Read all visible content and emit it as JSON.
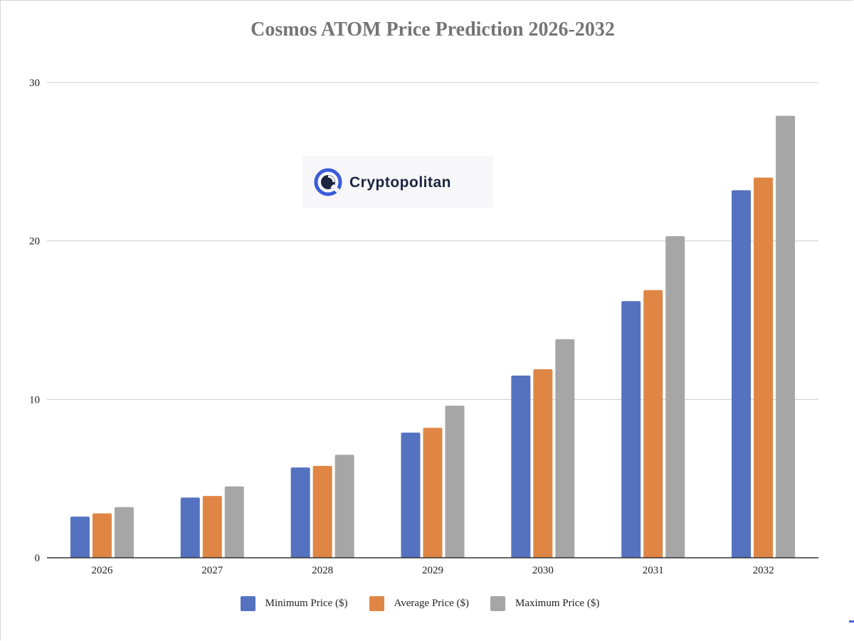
{
  "chart_data": {
    "type": "bar",
    "title": "Cosmos ATOM Price Prediction 2026-2032",
    "xlabel": "",
    "ylabel": "",
    "categories": [
      "2026",
      "2027",
      "2028",
      "2029",
      "2030",
      "2031",
      "2032"
    ],
    "series": [
      {
        "name": "Minimum Price ($)",
        "color": "#5472c0",
        "values": [
          2.6,
          3.8,
          5.7,
          7.9,
          11.5,
          16.2,
          23.2
        ]
      },
      {
        "name": "Average Price ($)",
        "color": "#e08644",
        "values": [
          2.8,
          3.9,
          5.8,
          8.2,
          11.9,
          16.9,
          24.0
        ]
      },
      {
        "name": "Maximum Price ($)",
        "color": "#a6a6a6",
        "values": [
          3.2,
          4.5,
          6.5,
          9.6,
          13.8,
          20.3,
          27.9
        ]
      }
    ],
    "yticks": [
      "0",
      "10",
      "20",
      "30"
    ],
    "ylim": [
      0,
      30
    ],
    "grid": true,
    "legend_position": "bottom"
  },
  "watermark": {
    "brand_text": "Cryptopolitan",
    "icon": "cryptopolitan-logo-icon"
  }
}
